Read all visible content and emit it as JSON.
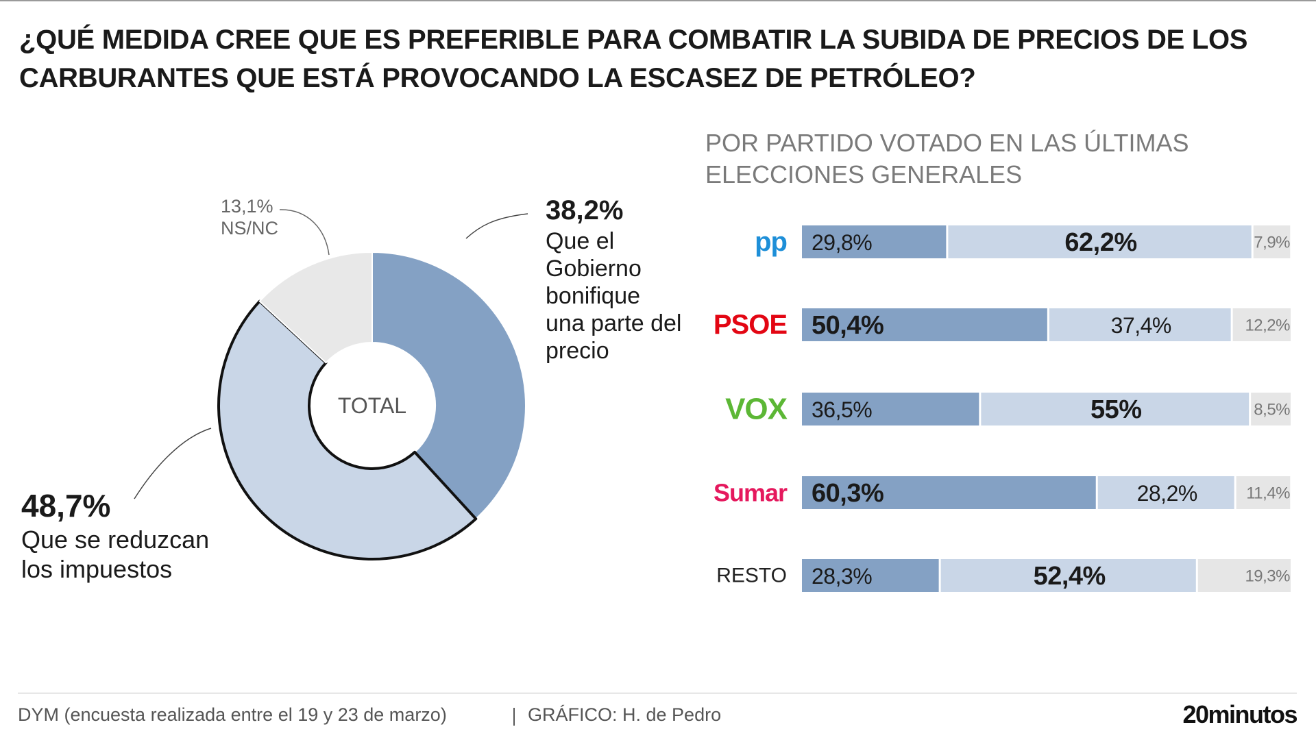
{
  "title": "¿QUÉ MEDIDA CREE QUE ES PREFERIBLE PARA COMBATIR LA SUBIDA DE PRECIOS DE LOS CARBURANTES QUE ESTÁ PROVOCANDO LA ESCASEZ DE PETRÓLEO?",
  "chart_data": [
    {
      "type": "donut",
      "center_label": "TOTAL",
      "categories": [
        "Que el Gobierno bonifique una parte del precio",
        "Que se reduzcan los impuestos",
        "NS/NC"
      ],
      "values": [
        38.2,
        48.7,
        13.1
      ],
      "value_labels": [
        "38,2%",
        "48,7%",
        "13,1%"
      ],
      "colors": [
        "#84a1c4",
        "#c9d6e7",
        "#e8e8e8"
      ]
    },
    {
      "type": "stacked-bar",
      "title": "POR PARTIDO VOTADO EN LAS ÚLTIMAS ELECCIONES GENERALES",
      "categories": [
        "pp",
        "PSOE",
        "VOX",
        "Sumar",
        "RESTO"
      ],
      "category_colors": [
        "#1e8fd8",
        "#e30613",
        "#5cb735",
        "#e5185d",
        "#222222"
      ],
      "series": [
        {
          "color": "#84a1c4",
          "values": [
            29.8,
            50.4,
            36.5,
            60.3,
            28.3
          ],
          "value_labels": [
            "29,8%",
            "50,4%",
            "36,5%",
            "60,3%",
            "28,3%"
          ]
        },
        {
          "color": "#c9d6e7",
          "values": [
            62.2,
            37.4,
            55,
            28.2,
            52.4
          ],
          "value_labels": [
            "62,2%",
            "37,4%",
            "55%",
            "28,2%",
            "52,4%"
          ]
        },
        {
          "color": "#e6e6e6",
          "values": [
            7.9,
            12.2,
            8.5,
            11.4,
            19.3
          ],
          "value_labels": [
            "7,9%",
            "12,2%",
            "8,5%",
            "11,4%",
            "19,3%"
          ]
        }
      ]
    }
  ],
  "footer": {
    "source": "DYM (encuesta realizada entre el 19 y 23 de marzo)",
    "credit": "GRÁFICO: H. de Pedro",
    "brand": "20minutos"
  }
}
